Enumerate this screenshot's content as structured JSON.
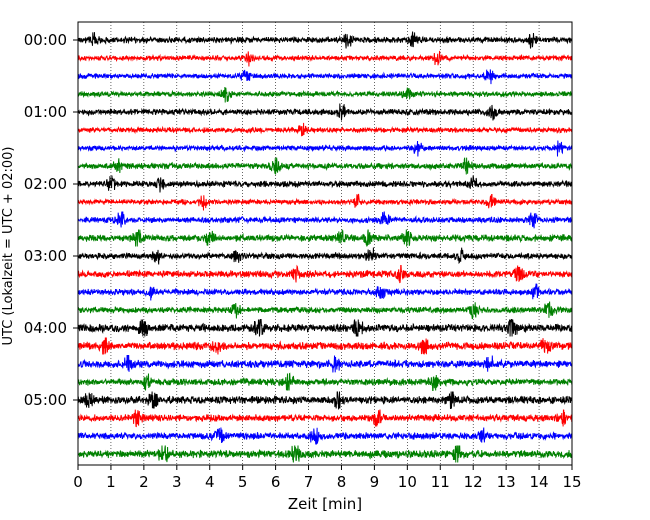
{
  "chart_data": {
    "type": "line",
    "title": "",
    "xlabel": "Zeit  [min]",
    "ylabel": "UTC (Lokalzeit = UTC + 02:00)",
    "xlim": [
      0,
      15
    ],
    "x_ticks": [
      0,
      1,
      2,
      3,
      4,
      5,
      6,
      7,
      8,
      9,
      10,
      11,
      12,
      13,
      14,
      15
    ],
    "x_tick_labels": [
      "0",
      "1",
      "2",
      "3",
      "4",
      "5",
      "6",
      "7",
      "8",
      "9",
      "10",
      "11",
      "12",
      "13",
      "14",
      "15"
    ],
    "y_tick_labels": [
      "00:00",
      "01:00",
      "02:00",
      "03:00",
      "04:00",
      "05:00"
    ],
    "y_tick_rows": [
      0,
      4,
      8,
      12,
      16,
      20
    ],
    "grid": "vertical dotted",
    "row_interval_minutes": 15,
    "colors": [
      "#000000",
      "#ff0000",
      "#0000ff",
      "#008000"
    ],
    "series": [
      {
        "start": "00:00",
        "color": "#000000",
        "amplitude": 0.35,
        "bursts": [
          0.5,
          8.2,
          10.2,
          13.8
        ]
      },
      {
        "start": "00:15",
        "color": "#ff0000",
        "amplitude": 0.3,
        "bursts": [
          5.2,
          10.9
        ]
      },
      {
        "start": "00:30",
        "color": "#0000ff",
        "amplitude": 0.3,
        "bursts": [
          5.1,
          12.5
        ]
      },
      {
        "start": "00:45",
        "color": "#008000",
        "amplitude": 0.3,
        "bursts": [
          4.5,
          10.0
        ]
      },
      {
        "start": "01:00",
        "color": "#000000",
        "amplitude": 0.35,
        "bursts": [
          8.0,
          12.6
        ]
      },
      {
        "start": "01:15",
        "color": "#ff0000",
        "amplitude": 0.3,
        "bursts": [
          6.8
        ]
      },
      {
        "start": "01:30",
        "color": "#0000ff",
        "amplitude": 0.3,
        "bursts": [
          10.3,
          14.6
        ]
      },
      {
        "start": "01:45",
        "color": "#008000",
        "amplitude": 0.35,
        "bursts": [
          1.2,
          6.0,
          11.8
        ]
      },
      {
        "start": "02:00",
        "color": "#000000",
        "amplitude": 0.35,
        "bursts": [
          1.0,
          2.5,
          12.0
        ]
      },
      {
        "start": "02:15",
        "color": "#ff0000",
        "amplitude": 0.3,
        "bursts": [
          3.8,
          8.5,
          12.5
        ]
      },
      {
        "start": "02:30",
        "color": "#0000ff",
        "amplitude": 0.35,
        "bursts": [
          1.3,
          9.3,
          13.8
        ]
      },
      {
        "start": "02:45",
        "color": "#008000",
        "amplitude": 0.4,
        "bursts": [
          1.8,
          4.0,
          8.0,
          8.8,
          10.0
        ]
      },
      {
        "start": "03:00",
        "color": "#000000",
        "amplitude": 0.35,
        "bursts": [
          2.4,
          4.8,
          8.9,
          11.6
        ]
      },
      {
        "start": "03:15",
        "color": "#ff0000",
        "amplitude": 0.4,
        "bursts": [
          6.6,
          9.8,
          13.4
        ]
      },
      {
        "start": "03:30",
        "color": "#0000ff",
        "amplitude": 0.35,
        "bursts": [
          2.2,
          9.2,
          13.9
        ]
      },
      {
        "start": "03:45",
        "color": "#008000",
        "amplitude": 0.35,
        "bursts": [
          4.8,
          12.0,
          14.3
        ]
      },
      {
        "start": "04:00",
        "color": "#000000",
        "amplitude": 0.45,
        "bursts": [
          2.0,
          5.5,
          8.5,
          13.2
        ]
      },
      {
        "start": "04:15",
        "color": "#ff0000",
        "amplitude": 0.45,
        "bursts": [
          0.8,
          4.2,
          10.5,
          14.2
        ]
      },
      {
        "start": "04:30",
        "color": "#0000ff",
        "amplitude": 0.45,
        "bursts": [
          1.5,
          7.8,
          12.5
        ]
      },
      {
        "start": "04:45",
        "color": "#008000",
        "amplitude": 0.4,
        "bursts": [
          2.1,
          6.4,
          10.8
        ]
      },
      {
        "start": "05:00",
        "color": "#000000",
        "amplitude": 0.45,
        "bursts": [
          0.3,
          2.3,
          7.9,
          11.3
        ]
      },
      {
        "start": "05:15",
        "color": "#ff0000",
        "amplitude": 0.4,
        "bursts": [
          1.8,
          9.1,
          14.7
        ]
      },
      {
        "start": "05:30",
        "color": "#0000ff",
        "amplitude": 0.4,
        "bursts": [
          4.3,
          7.2,
          12.3
        ]
      },
      {
        "start": "05:45",
        "color": "#008000",
        "amplitude": 0.45,
        "bursts": [
          2.6,
          6.6,
          11.5
        ]
      }
    ]
  }
}
